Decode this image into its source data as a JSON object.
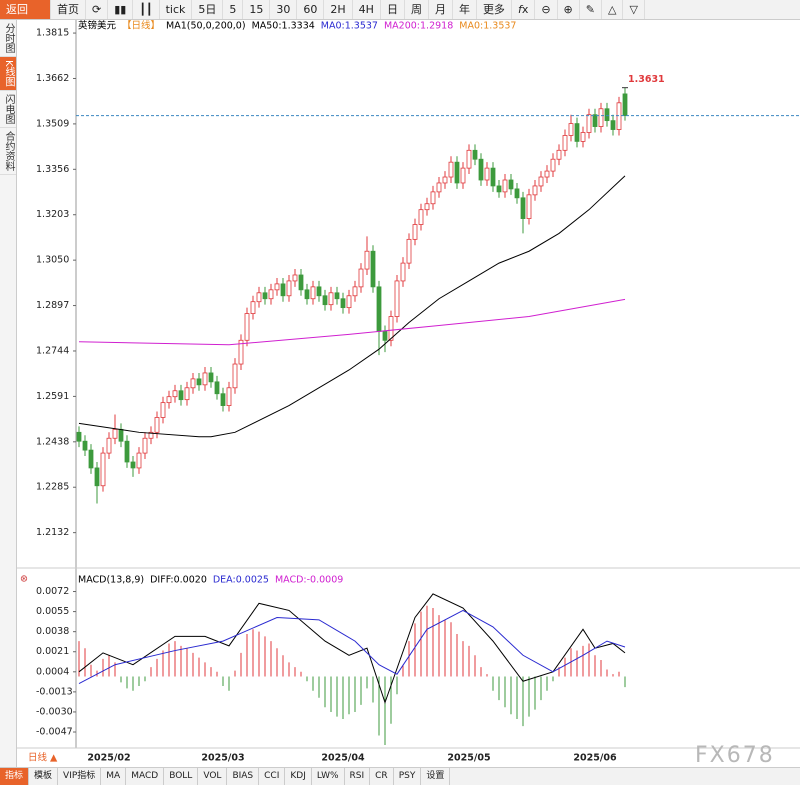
{
  "toolbar": {
    "back": "返回",
    "home": "首页",
    "tick": "tick",
    "periods": [
      "5日",
      "5",
      "15",
      "30",
      "60",
      "2H",
      "4H",
      "日",
      "周",
      "月",
      "年"
    ],
    "more": "更多"
  },
  "sidebar": [
    "分时图",
    "K线图",
    "闪电图",
    "合约资料"
  ],
  "chart_data": [
    {
      "type": "candlestick",
      "legend": [
        "英镑美元",
        "【日线】",
        "MA1(50,0,200,0)",
        "MA50:1.3334",
        "MA0:1.3537",
        "MA200:1.2918",
        "MA0:1.3537"
      ],
      "legend_colors": [
        "#000000",
        "#e8891c",
        "#000000",
        "#000000",
        "#2a2ad0",
        "#d020d0",
        "#e8891c"
      ],
      "open": [
        1.247,
        1.244,
        1.241,
        1.235,
        1.229,
        1.24,
        1.245,
        1.248,
        1.244,
        1.237,
        1.235,
        1.24,
        1.245,
        1.247,
        1.252,
        1.257,
        1.259,
        1.261,
        1.258,
        1.262,
        1.265,
        1.263,
        1.267,
        1.264,
        1.26,
        1.256,
        1.262,
        1.27,
        1.278,
        1.287,
        1.291,
        1.294,
        1.292,
        1.295,
        1.297,
        1.293,
        1.298,
        1.3,
        1.295,
        1.292,
        1.296,
        1.293,
        1.29,
        1.294,
        1.292,
        1.289,
        1.293,
        1.296,
        1.302,
        1.308,
        1.296,
        1.281,
        1.278,
        1.286,
        1.298,
        1.304,
        1.312,
        1.317,
        1.322,
        1.324,
        1.328,
        1.331,
        1.333,
        1.338,
        1.331,
        1.336,
        1.342,
        1.339,
        1.332,
        1.336,
        1.33,
        1.328,
        1.332,
        1.329,
        1.326,
        1.319,
        1.327,
        1.33,
        1.333,
        1.335,
        1.339,
        1.342,
        1.347,
        1.351,
        1.345,
        1.348,
        1.354,
        1.35,
        1.356,
        1.352,
        1.349,
        1.361
      ],
      "high": [
        1.249,
        1.246,
        1.243,
        1.237,
        1.242,
        1.247,
        1.253,
        1.25,
        1.246,
        1.239,
        1.242,
        1.247,
        1.249,
        1.254,
        1.259,
        1.261,
        1.263,
        1.263,
        1.264,
        1.267,
        1.267,
        1.269,
        1.269,
        1.266,
        1.262,
        1.264,
        1.272,
        1.28,
        1.289,
        1.293,
        1.296,
        1.296,
        1.297,
        1.299,
        1.299,
        1.3,
        1.302,
        1.302,
        1.297,
        1.298,
        1.298,
        1.295,
        1.296,
        1.296,
        1.294,
        1.295,
        1.298,
        1.304,
        1.313,
        1.31,
        1.298,
        1.283,
        1.288,
        1.3,
        1.306,
        1.314,
        1.319,
        1.324,
        1.326,
        1.33,
        1.333,
        1.335,
        1.34,
        1.34,
        1.338,
        1.344,
        1.344,
        1.341,
        1.338,
        1.338,
        1.332,
        1.334,
        1.334,
        1.331,
        1.328,
        1.329,
        1.332,
        1.335,
        1.337,
        1.341,
        1.344,
        1.349,
        1.354,
        1.353,
        1.35,
        1.356,
        1.356,
        1.358,
        1.358,
        1.354,
        1.36,
        1.3631
      ],
      "low": [
        1.242,
        1.239,
        1.233,
        1.223,
        1.227,
        1.238,
        1.243,
        1.242,
        1.235,
        1.232,
        1.233,
        1.238,
        1.243,
        1.245,
        1.25,
        1.255,
        1.257,
        1.256,
        1.256,
        1.26,
        1.261,
        1.261,
        1.262,
        1.258,
        1.254,
        1.254,
        1.26,
        1.268,
        1.276,
        1.285,
        1.289,
        1.29,
        1.29,
        1.293,
        1.291,
        1.291,
        1.296,
        1.293,
        1.29,
        1.29,
        1.291,
        1.288,
        1.288,
        1.29,
        1.287,
        1.287,
        1.291,
        1.294,
        1.3,
        1.294,
        1.273,
        1.274,
        1.276,
        1.284,
        1.296,
        1.302,
        1.31,
        1.315,
        1.32,
        1.322,
        1.326,
        1.329,
        1.331,
        1.329,
        1.329,
        1.334,
        1.337,
        1.33,
        1.33,
        1.328,
        1.326,
        1.326,
        1.327,
        1.324,
        1.314,
        1.317,
        1.325,
        1.328,
        1.331,
        1.333,
        1.337,
        1.34,
        1.345,
        1.343,
        1.343,
        1.346,
        1.348,
        1.348,
        1.35,
        1.347,
        1.347,
        1.352
      ],
      "close": [
        1.244,
        1.241,
        1.235,
        1.229,
        1.24,
        1.245,
        1.248,
        1.244,
        1.237,
        1.235,
        1.24,
        1.245,
        1.247,
        1.252,
        1.257,
        1.259,
        1.261,
        1.258,
        1.262,
        1.265,
        1.263,
        1.267,
        1.264,
        1.26,
        1.256,
        1.262,
        1.27,
        1.278,
        1.287,
        1.291,
        1.294,
        1.292,
        1.295,
        1.297,
        1.293,
        1.298,
        1.3,
        1.295,
        1.292,
        1.296,
        1.293,
        1.29,
        1.294,
        1.292,
        1.289,
        1.293,
        1.296,
        1.302,
        1.308,
        1.296,
        1.281,
        1.278,
        1.286,
        1.298,
        1.304,
        1.312,
        1.317,
        1.322,
        1.324,
        1.328,
        1.331,
        1.333,
        1.338,
        1.331,
        1.336,
        1.342,
        1.339,
        1.332,
        1.336,
        1.33,
        1.328,
        1.332,
        1.329,
        1.326,
        1.319,
        1.327,
        1.33,
        1.333,
        1.335,
        1.339,
        1.342,
        1.347,
        1.351,
        1.345,
        1.348,
        1.354,
        1.35,
        1.356,
        1.352,
        1.349,
        1.358,
        1.3537
      ],
      "up_color": "#e0393c",
      "down_color": "#3d9a3d",
      "ylim": [
        1.2023,
        1.3859
      ],
      "yticks": [
        1.3815,
        1.3662,
        1.3509,
        1.3356,
        1.3203,
        {
          "value": 1.305,
          "label": "1.3050"
        },
        1.2897,
        1.2744,
        1.2591,
        1.2438,
        1.2285,
        1.2132
      ],
      "lines": [
        {
          "color": "#000000",
          "x": [
            0,
            10,
            20,
            22,
            26,
            35,
            45,
            50,
            55,
            60,
            65,
            70,
            75,
            80,
            85,
            91
          ],
          "values": [
            1.25,
            1.247,
            1.2455,
            1.2455,
            1.247,
            1.256,
            1.268,
            1.275,
            1.284,
            1.292,
            1.298,
            1.304,
            1.308,
            1.314,
            1.322,
            1.3334
          ]
        },
        {
          "color": "#d020d0",
          "x": [
            0,
            25,
            45,
            60,
            75,
            91
          ],
          "values": [
            1.2775,
            1.2765,
            1.28,
            1.283,
            1.286,
            1.2918
          ]
        }
      ],
      "last_price_line": true,
      "last_price_color": "#3a86c0",
      "x_labels": {
        "at": [
          5,
          24,
          44,
          65,
          86
        ],
        "labels": [
          "2025/02",
          "2025/03",
          "2025/04",
          "2025/05",
          "2025/06"
        ]
      }
    },
    {
      "type": "macd",
      "legend": [
        "MACD(13,8,9)",
        "DIFF:0.0020",
        "DEA:0.0025",
        "MACD:-0.0009"
      ],
      "legend_colors": [
        "#000000",
        "#000000",
        "#2a2ad0",
        "#d020d0"
      ],
      "values": [
        0.003,
        0.0024,
        0.001,
        0.0005,
        0.0015,
        0.0018,
        0.0012,
        -0.0005,
        -0.001,
        -0.0012,
        -0.0008,
        -0.0004,
        0.0008,
        0.0015,
        0.0022,
        0.0028,
        0.003,
        0.0026,
        0.0024,
        0.002,
        0.0016,
        0.0012,
        0.0008,
        0.0004,
        -0.0008,
        -0.0012,
        0.0005,
        0.002,
        0.0036,
        0.004,
        0.0038,
        0.0034,
        0.003,
        0.0024,
        0.0018,
        0.0012,
        0.0008,
        0.0004,
        -0.0004,
        -0.0012,
        -0.0018,
        -0.0026,
        -0.003,
        -0.0034,
        -0.0036,
        -0.0032,
        -0.003,
        -0.0024,
        -0.001,
        -0.0022,
        -0.005,
        -0.0058,
        -0.004,
        -0.0015,
        0.001,
        0.003,
        0.0045,
        0.0055,
        0.006,
        0.0058,
        0.0052,
        0.0048,
        0.0046,
        0.0036,
        0.003,
        0.0026,
        0.0018,
        0.0008,
        0.0002,
        -0.0012,
        -0.002,
        -0.0026,
        -0.0032,
        -0.0036,
        -0.0042,
        -0.0034,
        -0.0028,
        -0.002,
        -0.0012,
        -0.0004,
        0.0008,
        0.0016,
        0.0024,
        0.0022,
        0.0026,
        0.0028,
        0.0018,
        0.0014,
        0.0006,
        0.0002,
        0.0004,
        -0.0009
      ],
      "up_color": "#e0393c",
      "down_color": "#3d9a3d",
      "diff": {
        "color": "#000000",
        "x": [
          0,
          4,
          9,
          16,
          21,
          25,
          30,
          35,
          41,
          45,
          48,
          51,
          56,
          59,
          64,
          69,
          74,
          79,
          84,
          86,
          89,
          91
        ],
        "values": [
          0.0004,
          0.002,
          0.001,
          0.0034,
          0.0034,
          0.0026,
          0.0062,
          0.0056,
          0.003,
          0.0018,
          0.0024,
          -0.0022,
          0.005,
          0.007,
          0.0058,
          0.003,
          -0.0004,
          0.0004,
          0.004,
          0.0024,
          0.0028,
          0.002
        ]
      },
      "dea": {
        "color": "#2a2ad0",
        "x": [
          0,
          6,
          16,
          24,
          33,
          40,
          46,
          50,
          53,
          58,
          64,
          69,
          74,
          79,
          84,
          88,
          91
        ],
        "values": [
          -0.0006,
          0.001,
          0.0022,
          0.003,
          0.005,
          0.0048,
          0.003,
          0.001,
          0.0002,
          0.004,
          0.0056,
          0.0042,
          0.0018,
          0.0004,
          0.0018,
          0.003,
          0.0025
        ]
      },
      "ylim": [
        -0.0058,
        0.0086
      ],
      "yticks": [
        0.0072,
        0.0055,
        0.0038,
        0.0021,
        0.0004,
        -0.0013,
        {
          "value": -0.003,
          "label": "-0.0030"
        },
        -0.0047
      ]
    }
  ],
  "period_label": "日线 ▲",
  "tabs": [
    "指标",
    "模板",
    "VIP指标",
    "MA",
    "MACD",
    "BOLL",
    "VOL",
    "BIAS",
    "CCI",
    "KDJ",
    "LW%",
    "RSI",
    "CR",
    "PSY",
    "设置"
  ],
  "watermark": "FX678"
}
